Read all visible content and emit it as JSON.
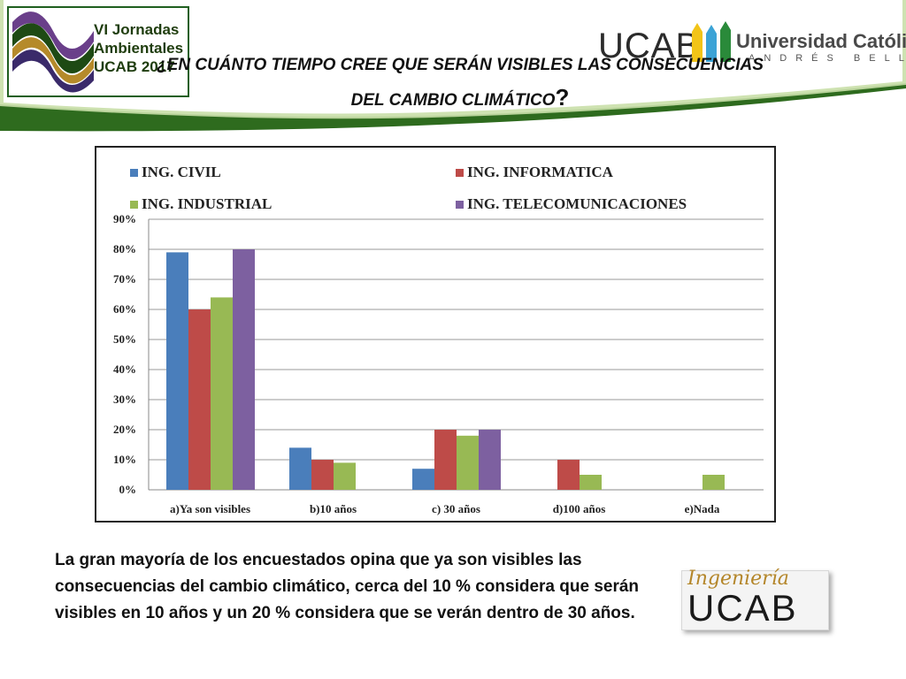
{
  "header": {
    "event_logo_text": [
      "VI Jornadas",
      "Ambientales",
      "UCAB 2017"
    ],
    "ucab_logo": {
      "short": "UCAB",
      "name": "Universidad Católica",
      "subname": "ANDRÉS BELLO"
    },
    "title_line1": "¿EN CUÁNTO TIEMPO CREE QUE SERÁN VISIBLES LAS CONSECUENCIAS",
    "title_line2": "DEL CAMBIO CLIMÁTICO",
    "title_qmark": "?"
  },
  "chart_data": {
    "type": "bar",
    "categories": [
      "a)Ya son visibles",
      "b)10 años",
      "c) 30 años",
      "d)100 años",
      "e)Nada"
    ],
    "series": [
      {
        "name": "ING. CIVIL",
        "color": "#4a7ebb",
        "values": [
          79,
          14,
          7,
          0,
          0
        ]
      },
      {
        "name": "ING. INFORMATICA",
        "color": "#be4b48",
        "values": [
          60,
          10,
          20,
          10,
          0
        ]
      },
      {
        "name": "ING. INDUSTRIAL",
        "color": "#98b954",
        "values": [
          64,
          9,
          18,
          5,
          5
        ]
      },
      {
        "name": "ING. TELECOMUNICACIONES",
        "color": "#7d60a0",
        "values": [
          80,
          0,
          20,
          0,
          0
        ]
      }
    ],
    "ylim": [
      0,
      90
    ],
    "yticks": [
      "0%",
      "10%",
      "20%",
      "30%",
      "40%",
      "50%",
      "60%",
      "70%",
      "80%",
      "90%"
    ],
    "grid": true,
    "legend": "top"
  },
  "caption": "La gran mayoría de los encuestados opina que ya son visibles las consecuencias del cambio climático, cerca del 10 % considera que serán visibles en 10 años y un 20 % considera que se verán dentro de 30 años.",
  "footer_logo": {
    "script": "Ingeniería",
    "word": "UCAB"
  }
}
